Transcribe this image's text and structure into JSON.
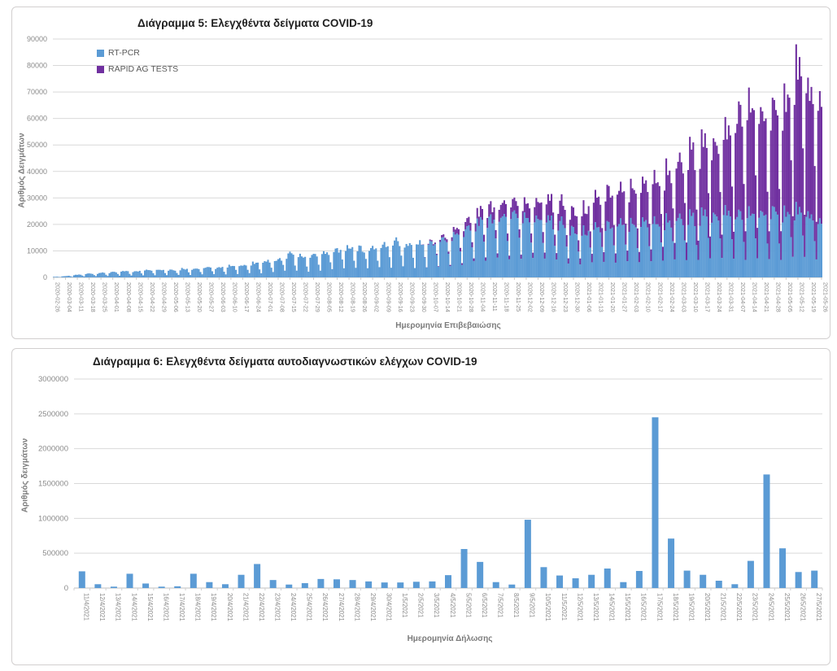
{
  "page": {
    "background": "#ffffff"
  },
  "chart_data": [
    {
      "type": "bar",
      "stacked": true,
      "title": "Διάγραμμα 5: Ελεγχθέντα δείγματα COVID-19",
      "xlabel": "Ημερομηνία Επιβεβαιώσης",
      "ylabel": "Αριθμός Δειγμάτων",
      "ylim": [
        0,
        90000
      ],
      "ytick_step": 10000,
      "ytick_labels": [
        "0",
        "10000",
        "20000",
        "30000",
        "40000",
        "50000",
        "60000",
        "70000",
        "80000",
        "90000"
      ],
      "x_range": [
        "2020-02-26",
        "2021-05-26"
      ],
      "x_resolution": "daily bars, weekly tick labels",
      "grid": "horizontal",
      "legend": {
        "position": "top-left-inside",
        "entries": [
          "RT-PCR",
          "RAPID AG TESTS"
        ]
      },
      "tick_labels": [
        "2020-02-26",
        "2020-03-04",
        "2020-03-11",
        "2020-03-18",
        "2020-03-25",
        "2020-04-01",
        "2020-04-08",
        "2020-04-15",
        "2020-04-22",
        "2020-04-29",
        "2020-05-06",
        "2020-05-13",
        "2020-05-20",
        "2020-05-27",
        "2020-06-03",
        "2020-06-10",
        "2020-06-17",
        "2020-06-24",
        "2020-07-01",
        "2020-07-08",
        "2020-07-15",
        "2020-07-22",
        "2020-07-29",
        "2020-08-05",
        "2020-08-12",
        "2020-08-19",
        "2020-08-26",
        "2020-09-02",
        "2020-09-09",
        "2020-09-16",
        "2020-09-23",
        "2020-09-30",
        "2020-10-07",
        "2020-10-14",
        "2020-10-21",
        "2020-10-28",
        "2020-11-04",
        "2020-11-11",
        "2020-11-18",
        "2020-11-25",
        "2020-12-02",
        "2020-12-09",
        "2020-12-16",
        "2020-12-23",
        "2020-12-30",
        "2021-01-06",
        "2021-01-13",
        "2021-01-20",
        "2021-01-27",
        "2021-02-03",
        "2021-02-10",
        "2021-02-17",
        "2021-02-24",
        "2021-03-03",
        "2021-03-10",
        "2021-03-17",
        "2021-03-24",
        "2021-03-31",
        "2021-04-07",
        "2021-04-14",
        "2021-04-21",
        "2021-04-28",
        "2021-05-05",
        "2021-05-12",
        "2021-05-19",
        "2021-05-26"
      ],
      "series": [
        {
          "name": "RT-PCR",
          "color": "#5B9BD5",
          "weekly_weekday_peak_estimates": [
            200,
            500,
            1000,
            1500,
            1800,
            2000,
            2500,
            2500,
            3000,
            3200,
            3000,
            3500,
            3500,
            4000,
            4000,
            4500,
            5000,
            5500,
            6500,
            7000,
            9500,
            8000,
            8500,
            10000,
            11000,
            12000,
            11500,
            12000,
            13000,
            14500,
            13000,
            13500,
            14000,
            15000,
            17000,
            19000,
            22000,
            24000,
            25000,
            26000,
            25000,
            24000,
            23000,
            22000,
            18000,
            18000,
            20000,
            20000,
            21000,
            21000,
            22000,
            22000,
            23000,
            23000,
            24000,
            25000,
            26000,
            26000,
            25000,
            25000,
            26000,
            25000,
            26000,
            27000,
            25000,
            22000
          ]
        },
        {
          "name": "RAPID AG TESTS",
          "color": "#7030A0",
          "weekly_weekday_peak_estimates": [
            0,
            0,
            0,
            0,
            0,
            0,
            0,
            0,
            0,
            0,
            0,
            0,
            0,
            0,
            0,
            0,
            0,
            0,
            0,
            0,
            0,
            0,
            0,
            0,
            0,
            0,
            0,
            0,
            0,
            0,
            0,
            0,
            500,
            1000,
            2000,
            3000,
            4000,
            5000,
            5500,
            5000,
            6000,
            7000,
            8000,
            8000,
            7000,
            9000,
            12000,
            13000,
            13000,
            14000,
            15000,
            17000,
            20000,
            22000,
            26000,
            28000,
            30000,
            32000,
            40000,
            42000,
            40000,
            38000,
            45000,
            58000,
            50000,
            48000
          ]
        }
      ],
      "weekday_factors_sun_to_sat": [
        0.28,
        0.85,
        1.0,
        0.97,
        0.93,
        0.88,
        0.55
      ],
      "start_day_of_week": 3,
      "colors": {
        "grid": "#d9d9d9",
        "axis": "#bfbfbf",
        "tick_text": "#8a8a8a",
        "axis_title_text": "#7b7b7b",
        "title_text": "#1f1f1f"
      }
    },
    {
      "type": "bar",
      "title": "Διάγραμμα 6: Ελεγχθέντα δείγματα αυτοδιαγνωστικών ελέγχων COVID-19",
      "xlabel": "Ημερομηνία Δήλωσης",
      "ylabel": "Αριθμός δειγμάτων",
      "ylim": [
        0,
        3000000
      ],
      "ytick_step": 500000,
      "ytick_labels": [
        "0",
        "500000",
        "1000000",
        "1500000",
        "2000000",
        "2500000",
        "3000000"
      ],
      "grid": "horizontal",
      "bar_color": "#5B9BD5",
      "categories": [
        "11/4/2021",
        "12/4/2021",
        "13/4/2021",
        "14/4/2021",
        "15/4/2021",
        "16/4/2021",
        "17/4/2021",
        "18/4/2021",
        "19/4/2021",
        "20/4/2021",
        "21/4/2021",
        "22/4/2021",
        "23/4/2021",
        "24/4/2021",
        "25/4/2021",
        "26/4/2021",
        "27/4/2021",
        "28/4/2021",
        "29/4/2021",
        "30/4/2021",
        "1/5/2021",
        "2/5/2021",
        "3/5/2021",
        "4/5/2021",
        "5/5/2021",
        "6/5/2021",
        "7/5/2021",
        "8/5/2021",
        "9/5/2021",
        "10/5/2021",
        "11/5/2021",
        "12/5/2021",
        "13/5/2021",
        "14/5/2021",
        "15/5/2021",
        "16/5/2021",
        "17/5/2021",
        "18/5/2021",
        "19/5/2021",
        "20/5/2021",
        "21/5/2021",
        "22/5/2021",
        "23/5/2021",
        "24/5/2021",
        "25/5/2021",
        "26/5/2021",
        "27/5/2021"
      ],
      "values": [
        240000,
        55000,
        20000,
        205000,
        65000,
        20000,
        25000,
        205000,
        85000,
        55000,
        190000,
        345000,
        115000,
        50000,
        70000,
        130000,
        125000,
        115000,
        95000,
        80000,
        80000,
        90000,
        95000,
        185000,
        560000,
        375000,
        85000,
        50000,
        980000,
        300000,
        180000,
        140000,
        190000,
        280000,
        85000,
        245000,
        2450000,
        710000,
        250000,
        190000,
        105000,
        55000,
        390000,
        1630000,
        570000,
        230000,
        250000
      ],
      "colors": {
        "grid": "#d9d9d9",
        "axis": "#bfbfbf",
        "tick_text": "#8a8a8a",
        "axis_title_text": "#7b7b7b",
        "title_text": "#1f1f1f"
      }
    }
  ]
}
